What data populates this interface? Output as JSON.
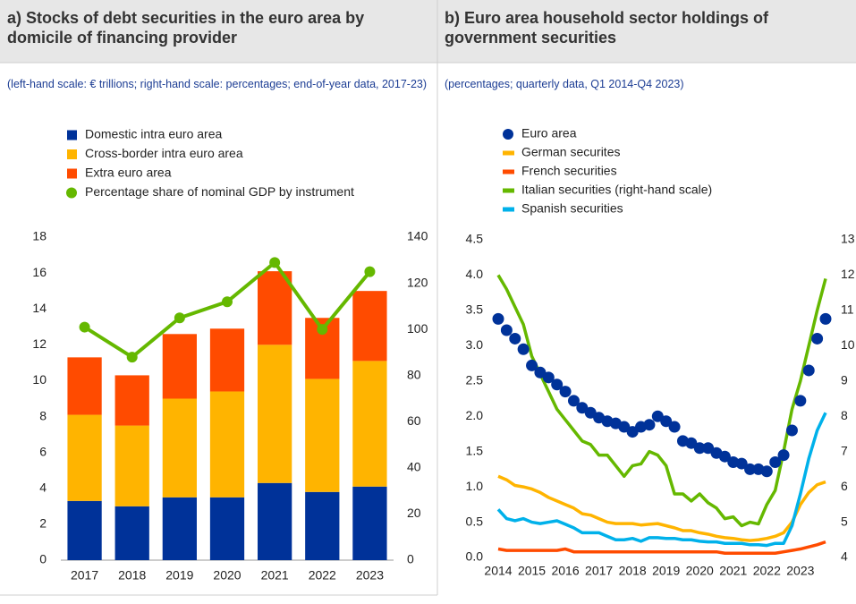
{
  "chart_data": [
    {
      "type": "bar",
      "stacked": true,
      "title": "a) Stocks of debt securities in the euro area by domicile of financing provider",
      "subtitle": "(left-hand scale: € trillions; right-hand scale: percentages; end-of-year data, 2017-23)",
      "categories": [
        "2017",
        "2018",
        "2019",
        "2020",
        "2021",
        "2022",
        "2023"
      ],
      "series": [
        {
          "name": "Domestic intra euro area",
          "color": "#003299",
          "values": [
            3.3,
            3.0,
            3.5,
            3.5,
            4.3,
            3.8,
            4.1
          ]
        },
        {
          "name": "Cross-border intra  euro area",
          "color": "#ffb400",
          "values": [
            4.8,
            4.5,
            5.5,
            5.9,
            7.7,
            6.3,
            7.0
          ]
        },
        {
          "name": "Extra euro area",
          "color": "#ff4b00",
          "values": [
            3.2,
            2.8,
            3.6,
            3.5,
            4.1,
            3.4,
            3.9
          ]
        },
        {
          "name": "Percentage share of nominal GDP by instrument",
          "color": "#65b800",
          "type": "line",
          "axis": "y2",
          "values": [
            101,
            88,
            105,
            112,
            129,
            100,
            125
          ]
        }
      ],
      "ylim": [
        0,
        18
      ],
      "yticks": [
        0,
        2,
        4,
        6,
        8,
        10,
        12,
        14,
        16,
        18
      ],
      "y2lim": [
        0,
        140
      ],
      "y2ticks": [
        0,
        20,
        40,
        60,
        80,
        100,
        120,
        140
      ]
    },
    {
      "type": "line",
      "title": "b) Euro area household sector holdings of government securities",
      "subtitle": "(percentages; quarterly data, Q1 2014-Q4 2023)",
      "categories": [
        "2014",
        null,
        null,
        null,
        "2015",
        null,
        null,
        null,
        "2016",
        null,
        null,
        null,
        "2017",
        null,
        null,
        null,
        "2018",
        null,
        null,
        null,
        "2019",
        null,
        null,
        null,
        "2020",
        null,
        null,
        null,
        "2021",
        null,
        null,
        null,
        "2022",
        null,
        null,
        null,
        "2023",
        null,
        null,
        null
      ],
      "series": [
        {
          "name": "Euro area",
          "color": "#003299",
          "marker": "circle",
          "values": [
            3.38,
            3.22,
            3.1,
            2.95,
            2.72,
            2.62,
            2.55,
            2.45,
            2.35,
            2.22,
            2.12,
            2.05,
            1.98,
            1.93,
            1.9,
            1.85,
            1.78,
            1.85,
            1.88,
            2.0,
            1.93,
            1.85,
            1.65,
            1.62,
            1.55,
            1.55,
            1.48,
            1.43,
            1.35,
            1.33,
            1.25,
            1.25,
            1.22,
            1.35,
            1.45,
            1.8,
            2.22,
            2.65,
            3.1,
            3.38
          ]
        },
        {
          "name": "German securites",
          "color": "#ffb400",
          "values": [
            1.15,
            1.1,
            1.02,
            1.0,
            0.97,
            0.92,
            0.85,
            0.8,
            0.75,
            0.7,
            0.62,
            0.6,
            0.55,
            0.5,
            0.48,
            0.48,
            0.48,
            0.46,
            0.47,
            0.48,
            0.45,
            0.42,
            0.38,
            0.38,
            0.35,
            0.33,
            0.3,
            0.28,
            0.27,
            0.25,
            0.24,
            0.25,
            0.27,
            0.3,
            0.35,
            0.5,
            0.75,
            0.92,
            1.03,
            1.07
          ]
        },
        {
          "name": "French securities",
          "color": "#ff4b00",
          "values": [
            0.12,
            0.1,
            0.1,
            0.1,
            0.1,
            0.1,
            0.1,
            0.1,
            0.12,
            0.08,
            0.08,
            0.08,
            0.08,
            0.08,
            0.08,
            0.08,
            0.08,
            0.08,
            0.08,
            0.08,
            0.08,
            0.08,
            0.08,
            0.08,
            0.08,
            0.08,
            0.08,
            0.06,
            0.06,
            0.06,
            0.06,
            0.06,
            0.06,
            0.06,
            0.08,
            0.1,
            0.12,
            0.15,
            0.18,
            0.22
          ]
        },
        {
          "name": "Italian securities (right-hand scale)",
          "color": "#65b800",
          "axis": "y2",
          "values": [
            12.0,
            11.6,
            11.1,
            10.6,
            9.7,
            9.2,
            8.7,
            8.2,
            7.9,
            7.6,
            7.3,
            7.2,
            6.9,
            6.9,
            6.6,
            6.3,
            6.6,
            6.65,
            7.0,
            6.9,
            6.6,
            5.8,
            5.8,
            5.6,
            5.8,
            5.55,
            5.4,
            5.1,
            5.15,
            4.9,
            5.0,
            4.95,
            5.5,
            5.9,
            7.0,
            8.2,
            9.0,
            10.0,
            11.0,
            11.9
          ]
        },
        {
          "name": "Spanish securities",
          "color": "#00b1ea",
          "values": [
            0.68,
            0.55,
            0.52,
            0.55,
            0.5,
            0.48,
            0.5,
            0.52,
            0.47,
            0.42,
            0.35,
            0.35,
            0.35,
            0.3,
            0.25,
            0.25,
            0.27,
            0.23,
            0.28,
            0.28,
            0.27,
            0.27,
            0.25,
            0.25,
            0.23,
            0.22,
            0.22,
            0.2,
            0.2,
            0.2,
            0.18,
            0.18,
            0.17,
            0.2,
            0.2,
            0.45,
            0.9,
            1.4,
            1.8,
            2.05
          ]
        }
      ],
      "ylim": [
        0,
        4.5
      ],
      "yticks": [
        {
          "value": 0,
          "label": "0.0"
        },
        0.5,
        {
          "value": 1,
          "label": "1.0"
        },
        1.5,
        {
          "value": 2,
          "label": "2.0"
        },
        2.5,
        {
          "value": 3,
          "label": "3.0"
        },
        3.5,
        {
          "value": 4,
          "label": "4.0"
        },
        4.5
      ],
      "y2lim": [
        4,
        13
      ],
      "y2ticks": [
        4,
        5,
        6,
        7,
        8,
        9,
        10,
        11,
        12,
        13
      ]
    }
  ]
}
